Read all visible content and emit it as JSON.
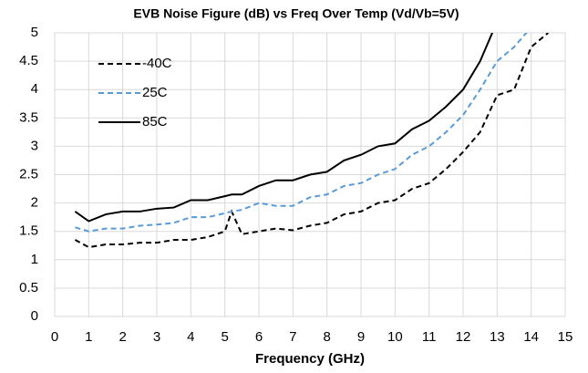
{
  "chart_data": {
    "type": "line",
    "title": "EVB Noise Figure (dB) vs Freq Over Temp (Vd/Vb=5V)",
    "x_label": "Frequency (GHz)",
    "x": [
      0.6,
      1,
      1.5,
      2,
      2.5,
      3,
      3.5,
      4,
      4.5,
      5,
      5.2,
      5.5,
      6,
      6.5,
      7,
      7.5,
      8,
      8.5,
      9,
      9.5,
      10,
      10.5,
      11,
      11.5,
      12,
      12.5,
      13,
      13.5,
      14,
      14.5
    ],
    "series": [
      {
        "name": "-40C",
        "color": "#000000",
        "dash": "dashed",
        "values": [
          1.35,
          1.22,
          1.27,
          1.27,
          1.3,
          1.3,
          1.35,
          1.35,
          1.4,
          1.5,
          1.85,
          1.45,
          1.5,
          1.55,
          1.52,
          1.6,
          1.65,
          1.8,
          1.85,
          2.0,
          2.05,
          2.25,
          2.35,
          2.6,
          2.9,
          3.25,
          3.9,
          4.0,
          4.75,
          5.0
        ]
      },
      {
        "name": "25C",
        "color": "#5b9bd5",
        "dash": "dashed",
        "values": [
          1.57,
          1.5,
          1.55,
          1.55,
          1.6,
          1.62,
          1.65,
          1.75,
          1.75,
          1.82,
          1.85,
          1.88,
          2.0,
          1.95,
          1.95,
          2.1,
          2.15,
          2.3,
          2.35,
          2.5,
          2.6,
          2.85,
          3.0,
          3.25,
          3.55,
          4.0,
          4.5,
          4.75,
          5.1,
          null
        ]
      },
      {
        "name": "85C",
        "color": "#000000",
        "dash": "solid",
        "values": [
          1.85,
          1.68,
          1.8,
          1.85,
          1.85,
          1.9,
          1.92,
          2.05,
          2.05,
          2.12,
          2.15,
          2.15,
          2.3,
          2.4,
          2.4,
          2.5,
          2.55,
          2.75,
          2.85,
          3.0,
          3.05,
          3.3,
          3.45,
          3.7,
          4.0,
          4.5,
          5.2,
          null,
          null,
          null
        ]
      }
    ],
    "xlim": [
      0,
      15
    ],
    "xticks": [
      0,
      1,
      2,
      3,
      4,
      5,
      6,
      7,
      8,
      9,
      10,
      11,
      12,
      13,
      14,
      15
    ],
    "ylim": [
      0,
      5
    ],
    "yticks": [
      0,
      0.5,
      1,
      1.5,
      2,
      2.5,
      3,
      3.5,
      4,
      4.5,
      5
    ],
    "grid": true,
    "legend": "upper left"
  }
}
